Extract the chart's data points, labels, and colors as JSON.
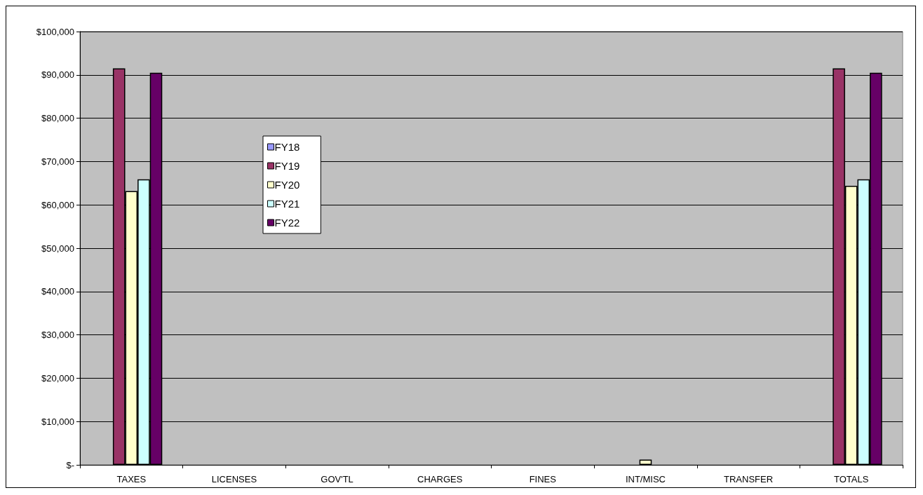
{
  "chart_data": {
    "type": "bar",
    "categories": [
      "TAXES",
      "LICENSES",
      "GOV'TL",
      "CHARGES",
      "FINES",
      "INT/MISC",
      "TRANSFER",
      "TOTALS"
    ],
    "series": [
      {
        "name": "FY18",
        "color": "#9999ff",
        "values": [
          null,
          null,
          null,
          null,
          null,
          null,
          null,
          null
        ]
      },
      {
        "name": "FY19",
        "color": "#993366",
        "values": [
          91500,
          null,
          null,
          null,
          null,
          null,
          null,
          91500
        ]
      },
      {
        "name": "FY20",
        "color": "#ffffcc",
        "values": [
          63200,
          null,
          null,
          null,
          null,
          1200,
          null,
          64400
        ]
      },
      {
        "name": "FY21",
        "color": "#ccffff",
        "values": [
          65900,
          null,
          null,
          null,
          null,
          null,
          null,
          65900
        ]
      },
      {
        "name": "FY22",
        "color": "#660066",
        "values": [
          90500,
          null,
          null,
          null,
          null,
          null,
          null,
          90500
        ]
      }
    ],
    "ylim": [
      0,
      100000
    ],
    "yticks": [
      {
        "value": 0,
        "label": "$-"
      },
      {
        "value": 10000,
        "label": "$10,000"
      },
      {
        "value": 20000,
        "label": "$20,000"
      },
      {
        "value": 30000,
        "label": "$30,000"
      },
      {
        "value": 40000,
        "label": "$40,000"
      },
      {
        "value": 50000,
        "label": "$50,000"
      },
      {
        "value": 60000,
        "label": "$60,000"
      },
      {
        "value": 70000,
        "label": "$70,000"
      },
      {
        "value": 80000,
        "label": "$80,000"
      },
      {
        "value": 90000,
        "label": "$90,000"
      },
      {
        "value": 100000,
        "label": "$100,000"
      }
    ],
    "grid": "y",
    "legend": "left"
  }
}
